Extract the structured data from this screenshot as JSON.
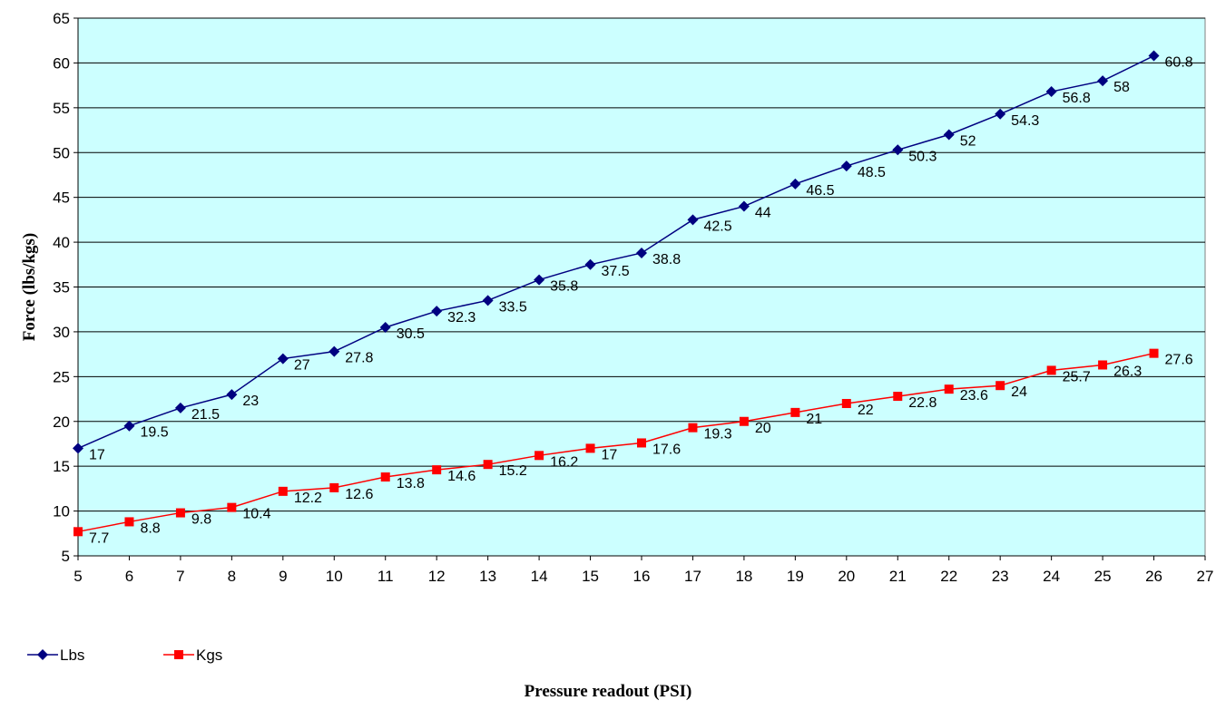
{
  "colors": {
    "plot_background": "#CCFFFF",
    "gridline": "#000000",
    "lbs": "#000080",
    "kgs": "#FF0000"
  },
  "chart_data": {
    "type": "line",
    "xlabel": "Pressure readout (PSI)",
    "ylabel": "Force (lbs/kgs)",
    "xlim": [
      5,
      27
    ],
    "ylim": [
      5,
      65
    ],
    "x_ticks": [
      5,
      6,
      7,
      8,
      9,
      10,
      11,
      12,
      13,
      14,
      15,
      16,
      17,
      18,
      19,
      20,
      21,
      22,
      23,
      24,
      25,
      26,
      27
    ],
    "y_ticks": [
      5,
      10,
      15,
      20,
      25,
      30,
      35,
      40,
      45,
      50,
      55,
      60,
      65
    ],
    "grid": "horizontal",
    "legend_position": "bottom-left",
    "x": [
      5,
      6,
      7,
      8,
      9,
      10,
      11,
      12,
      13,
      14,
      15,
      16,
      17,
      18,
      19,
      20,
      21,
      22,
      23,
      24,
      25,
      26
    ],
    "series": [
      {
        "name": "Lbs",
        "marker": "diamond",
        "values": [
          17,
          19.5,
          21.5,
          23,
          27,
          27.8,
          30.5,
          32.3,
          33.5,
          35.8,
          37.5,
          38.8,
          42.5,
          44,
          46.5,
          48.5,
          50.3,
          52,
          54.3,
          56.8,
          58,
          60.8
        ]
      },
      {
        "name": "Kgs",
        "marker": "square",
        "values": [
          7.7,
          8.8,
          9.8,
          10.4,
          12.2,
          12.6,
          13.8,
          14.6,
          15.2,
          16.2,
          17,
          17.6,
          19.3,
          20,
          21,
          22,
          22.8,
          23.6,
          24,
          25.7,
          26.3,
          27.6
        ]
      }
    ]
  }
}
